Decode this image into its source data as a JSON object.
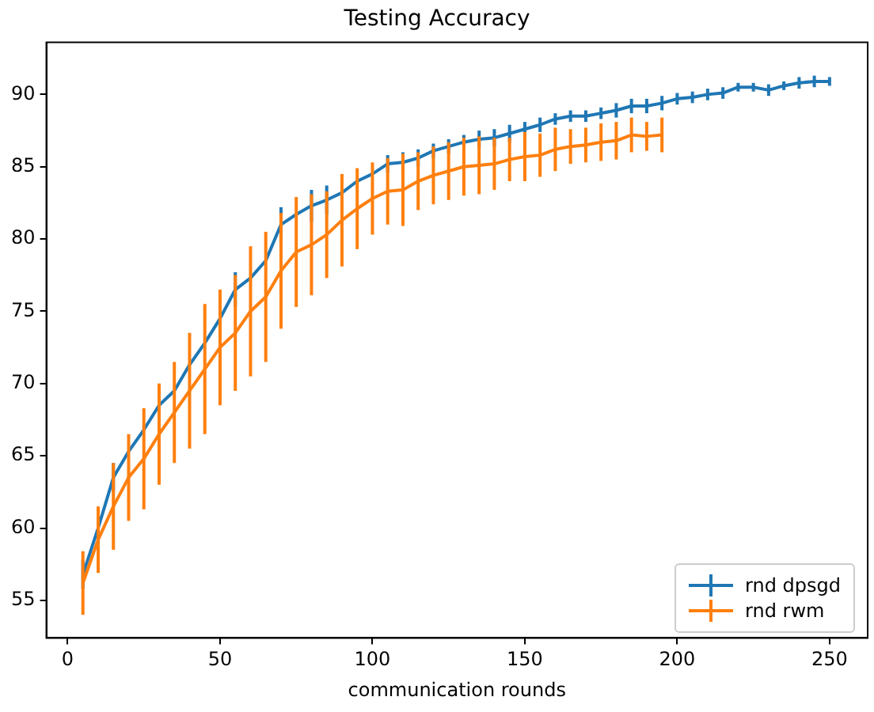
{
  "chart_data": {
    "type": "line",
    "title": "Testing Accuracy",
    "xlabel": "communication rounds",
    "xlim": [
      -7,
      262.5
    ],
    "xticks": [
      0,
      50,
      100,
      150,
      200,
      250
    ],
    "ylim": [
      52.4,
      93.6
    ],
    "yticks": [
      55,
      60,
      65,
      70,
      75,
      80,
      85,
      90
    ],
    "grid": false,
    "legend": "bottom right",
    "marker": "none",
    "line_style": "solid",
    "series": [
      {
        "name": "rnd dpsgd",
        "color": "#1f77b4",
        "x": [
          5,
          10,
          15,
          20,
          25,
          30,
          35,
          40,
          45,
          50,
          55,
          60,
          65,
          70,
          75,
          80,
          85,
          90,
          95,
          100,
          105,
          110,
          115,
          120,
          125,
          130,
          135,
          140,
          145,
          150,
          155,
          160,
          165,
          170,
          175,
          180,
          185,
          190,
          195,
          200,
          205,
          210,
          215,
          220,
          225,
          230,
          235,
          240,
          245,
          250
        ],
        "values": [
          56.8,
          60,
          63.5,
          65.3,
          66.8,
          68.5,
          69.5,
          71.3,
          72.8,
          74.5,
          76.5,
          77.3,
          78.5,
          81,
          81.7,
          82.3,
          82.7,
          83.2,
          84,
          84.5,
          85.2,
          85.3,
          85.6,
          86.1,
          86.4,
          86.7,
          86.9,
          87,
          87.3,
          87.6,
          87.9,
          88.3,
          88.5,
          88.5,
          88.7,
          88.9,
          89.2,
          89.2,
          89.4,
          89.7,
          89.8,
          90,
          90.1,
          90.5,
          90.5,
          90.3,
          90.6,
          90.8,
          90.9,
          90.9
        ],
        "errors": [
          1,
          null,
          1,
          null,
          null,
          null,
          null,
          null,
          null,
          null,
          1.2,
          null,
          null,
          1.2,
          null,
          1.1,
          1,
          null,
          null,
          null,
          0.6,
          0.7,
          0.6,
          0.5,
          0.5,
          0.5,
          0.6,
          0.6,
          0.6,
          0.5,
          0.5,
          0.4,
          0.4,
          0.4,
          0.4,
          0.5,
          0.5,
          0.5,
          0.5,
          0.4,
          0.4,
          0.4,
          0.4,
          0.3,
          0.3,
          0.4,
          0.3,
          0.4,
          0.4,
          0.3
        ]
      },
      {
        "name": "rnd rwm",
        "color": "#ff7f0e",
        "x": [
          5,
          10,
          15,
          20,
          25,
          30,
          35,
          40,
          45,
          50,
          55,
          60,
          65,
          70,
          75,
          80,
          85,
          90,
          95,
          100,
          105,
          110,
          115,
          120,
          125,
          130,
          135,
          140,
          145,
          150,
          155,
          160,
          165,
          170,
          175,
          180,
          185,
          190,
          195
        ],
        "values": [
          56.2,
          59.2,
          61.5,
          63.5,
          64.8,
          66.5,
          68,
          69.5,
          71,
          72.5,
          73.5,
          75,
          76,
          77.8,
          79.1,
          79.6,
          80.3,
          81.3,
          82.1,
          82.8,
          83.3,
          83.4,
          84,
          84.4,
          84.7,
          85,
          85.1,
          85.2,
          85.5,
          85.7,
          85.8,
          86.2,
          86.4,
          86.5,
          86.7,
          86.8,
          87.2,
          87.1,
          87.2
        ],
        "errors": [
          2.2,
          2.3,
          3,
          3,
          3.5,
          3.5,
          3.5,
          4,
          4.5,
          4,
          4,
          4.5,
          4.5,
          4,
          3.8,
          3.5,
          3,
          3.2,
          2.8,
          2.5,
          2.3,
          2.5,
          2,
          2,
          2,
          2,
          2,
          1.8,
          1.5,
          1.7,
          1.5,
          1.5,
          1.2,
          1.2,
          1.3,
          1.3,
          1.2,
          1,
          1.2
        ]
      }
    ]
  }
}
